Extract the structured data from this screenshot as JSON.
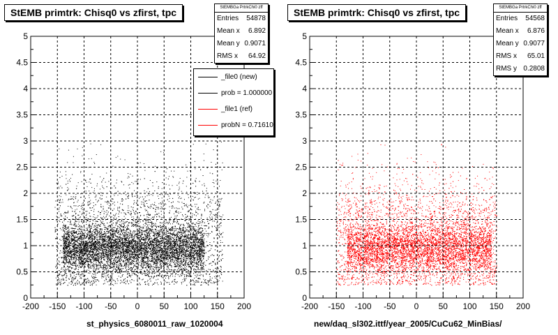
{
  "chart_data": [
    {
      "type": "scatter",
      "title": "StEMB primtrk: Chisq0 vs zfirst, tpc",
      "xlabel": "st_physics_6080011_raw_1020004",
      "ylabel": "",
      "xlim": [
        -200,
        200
      ],
      "ylim": [
        0,
        5
      ],
      "x_ticks": [
        "-200",
        "-150",
        "-100",
        "-50",
        "0",
        "50",
        "100",
        "150",
        "200"
      ],
      "y_ticks": [
        "0",
        "0.5",
        "1",
        "1.5",
        "2",
        "2.5",
        "3",
        "3.5",
        "4",
        "4.5",
        "5"
      ],
      "grid": true,
      "marker_color": "#000000",
      "density": {
        "core_x": [
          -140,
          125
        ],
        "core_y": [
          0.4,
          1.5
        ],
        "spread_x": [
          -155,
          160
        ],
        "spread_y": [
          0.25,
          3.0
        ]
      },
      "stats": {
        "name": "StEMBGa PrtrkChi0 zff",
        "entries": "54878",
        "mean_x": "6.892",
        "mean_y": "0.9071",
        "rms_x": "64.92"
      },
      "legend": {
        "placement": "top-right",
        "entries": [
          {
            "label": "_file0 (new)",
            "color": "#000000"
          },
          {
            "label": "prob = 1.000000",
            "color": "#000000"
          },
          {
            "label": "_file1 (ref)",
            "color": "#ff0000"
          },
          {
            "label": "probN = 0.716100",
            "color": "#ff0000"
          }
        ]
      }
    },
    {
      "type": "scatter",
      "title": "StEMB primtrk: Chisq0 vs zfirst, tpc",
      "xlabel": "new/daq_sl302.ittf/year_2005/CuCu62_MinBias/",
      "ylabel": "",
      "xlim": [
        -200,
        200
      ],
      "ylim": [
        0,
        5
      ],
      "x_ticks": [
        "-200",
        "-150",
        "-100",
        "-50",
        "0",
        "50",
        "100",
        "150",
        "200"
      ],
      "y_ticks": [
        "0",
        "0.5",
        "1",
        "1.5",
        "2",
        "2.5",
        "3",
        "3.5",
        "4",
        "4.5",
        "5"
      ],
      "grid": true,
      "marker_color": "#ff0000",
      "density": {
        "core_x": [
          -130,
          140
        ],
        "core_y": [
          0.5,
          1.5
        ],
        "spread_x": [
          -150,
          150
        ],
        "spread_y": [
          0.25,
          3.0
        ]
      },
      "stats": {
        "name": "StEMBGa PrtrkChi0 zff",
        "entries": "54568",
        "mean_x": "6.876",
        "mean_y": "0.9077",
        "rms_x": "65.01",
        "rms_y": "0.2808"
      }
    }
  ],
  "labels": {
    "entries": "Entries",
    "mean_x": "Mean x",
    "mean_y": "Mean y",
    "rms_x": "RMS x",
    "rms_y": "RMS y"
  }
}
